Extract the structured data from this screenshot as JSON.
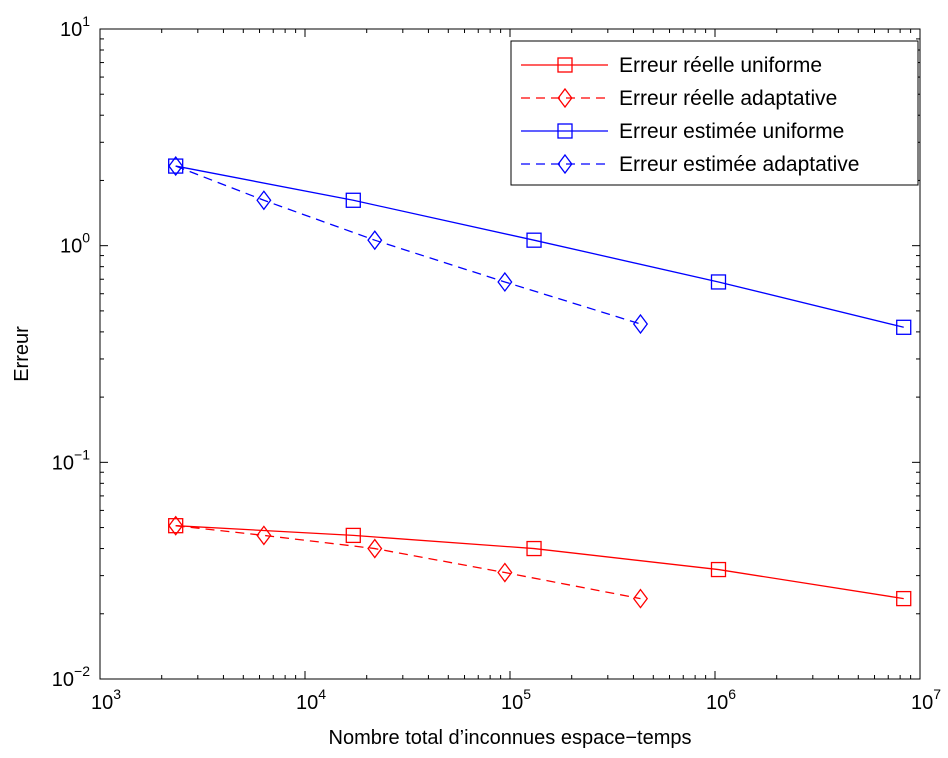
{
  "chart_data": {
    "type": "line",
    "xscale": "log",
    "yscale": "log",
    "xlim": [
      1000,
      10000000
    ],
    "ylim": [
      0.01,
      10
    ],
    "xlabel": "Nombre total d’inconnues espace−temps",
    "ylabel": "Erreur",
    "title": "",
    "grid": false,
    "legend_position": "top-right",
    "x_ticks": [
      {
        "base": "10",
        "exp": "3"
      },
      {
        "base": "10",
        "exp": "4"
      },
      {
        "base": "10",
        "exp": "5"
      },
      {
        "base": "10",
        "exp": "6"
      },
      {
        "base": "10",
        "exp": "7"
      }
    ],
    "y_ticks": [
      {
        "base": "10",
        "exp": "−2"
      },
      {
        "base": "10",
        "exp": "−1"
      },
      {
        "base": "10",
        "exp": "0"
      },
      {
        "base": "10",
        "exp": "1"
      }
    ],
    "series": [
      {
        "name": "Erreur réelle uniforme",
        "color": "#ff0000",
        "line": "solid",
        "marker": "square",
        "x": [
          2340,
          17200,
          131000,
          1040000,
          8330000
        ],
        "y": [
          0.051,
          0.046,
          0.04,
          0.032,
          0.0235
        ]
      },
      {
        "name": "Erreur réelle adaptative",
        "color": "#ff0000",
        "line": "dashed",
        "marker": "diamond",
        "x": [
          2340,
          6300,
          21900,
          94400,
          433000
        ],
        "y": [
          0.051,
          0.046,
          0.04,
          0.031,
          0.0235
        ]
      },
      {
        "name": "Erreur estimée uniforme",
        "color": "#0000ff",
        "line": "solid",
        "marker": "square",
        "x": [
          2340,
          17200,
          131000,
          1040000,
          8330000
        ],
        "y": [
          2.33,
          1.62,
          1.06,
          0.68,
          0.42
        ]
      },
      {
        "name": "Erreur estimée adaptative",
        "color": "#0000ff",
        "line": "dashed",
        "marker": "diamond",
        "x": [
          2340,
          6300,
          21900,
          94400,
          433000
        ],
        "y": [
          2.33,
          1.62,
          1.06,
          0.68,
          0.435
        ]
      }
    ]
  }
}
